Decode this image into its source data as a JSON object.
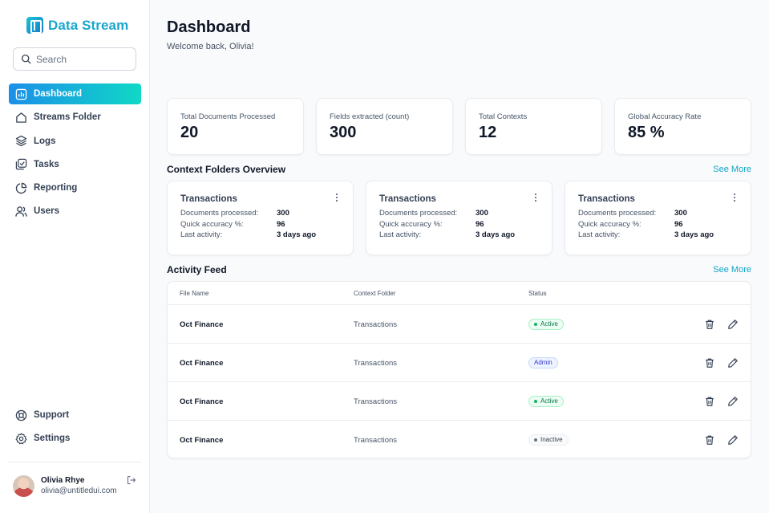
{
  "brand": {
    "name": "Data Stream"
  },
  "search": {
    "placeholder": "Search"
  },
  "nav": [
    {
      "label": "Dashboard",
      "icon": "bar-chart-icon",
      "active": true
    },
    {
      "label": "Streams Folder",
      "icon": "home-icon",
      "active": false
    },
    {
      "label": "Logs",
      "icon": "layers-icon",
      "active": false
    },
    {
      "label": "Tasks",
      "icon": "tasks-icon",
      "active": false
    },
    {
      "label": "Reporting",
      "icon": "pie-chart-icon",
      "active": false
    },
    {
      "label": "Users",
      "icon": "users-icon",
      "active": false
    }
  ],
  "nav_bottom": [
    {
      "label": "Support",
      "icon": "life-buoy-icon"
    },
    {
      "label": "Settings",
      "icon": "gear-icon"
    }
  ],
  "user": {
    "name": "Olivia Rhye",
    "email": "olivia@untitledui.com"
  },
  "header": {
    "title": "Dashboard",
    "subtitle": "Welcome back, Olivia!"
  },
  "stats": [
    {
      "label": "Total Documents Processed",
      "value": "20"
    },
    {
      "label": "Fields extracted (count)",
      "value": "300"
    },
    {
      "label": "Total Contexts",
      "value": "12"
    },
    {
      "label": "Global Accuracy Rate",
      "value": "85 %"
    }
  ],
  "folders_section": {
    "title": "Context Folders Overview",
    "see_more": "See More"
  },
  "folders": [
    {
      "title": "Transactions",
      "docs_label": "Documents processed:",
      "docs": "300",
      "acc_label": "Quick accuracy %:",
      "acc": "96",
      "last_label": "Last activity:",
      "last": "3 days ago"
    },
    {
      "title": "Transactions",
      "docs_label": "Documents processed:",
      "docs": "300",
      "acc_label": "Quick accuracy %:",
      "acc": "96",
      "last_label": "Last activity:",
      "last": "3 days ago"
    },
    {
      "title": "Transactions",
      "docs_label": "Documents processed:",
      "docs": "300",
      "acc_label": "Quick accuracy %:",
      "acc": "96",
      "last_label": "Last activity:",
      "last": "3 days ago"
    }
  ],
  "activity_section": {
    "title": "Activity Feed",
    "see_more": "See More"
  },
  "table": {
    "headers": {
      "file": "File Name",
      "folder": "Context Folder",
      "status": "Status"
    },
    "rows": [
      {
        "file": "Oct Finance",
        "folder": "Transactions",
        "status": "Active",
        "status_kind": "active"
      },
      {
        "file": "Oct Finance",
        "folder": "Transactions",
        "status": "Admin",
        "status_kind": "admin"
      },
      {
        "file": "Oct Finance",
        "folder": "Transactions",
        "status": "Active",
        "status_kind": "active"
      },
      {
        "file": "Oct Finance",
        "folder": "Transactions",
        "status": "Inactive",
        "status_kind": "inactive"
      }
    ]
  },
  "colors": {
    "accent_start": "#1b8fe8",
    "accent_end": "#10d8c6",
    "link": "#0ea5c6"
  }
}
